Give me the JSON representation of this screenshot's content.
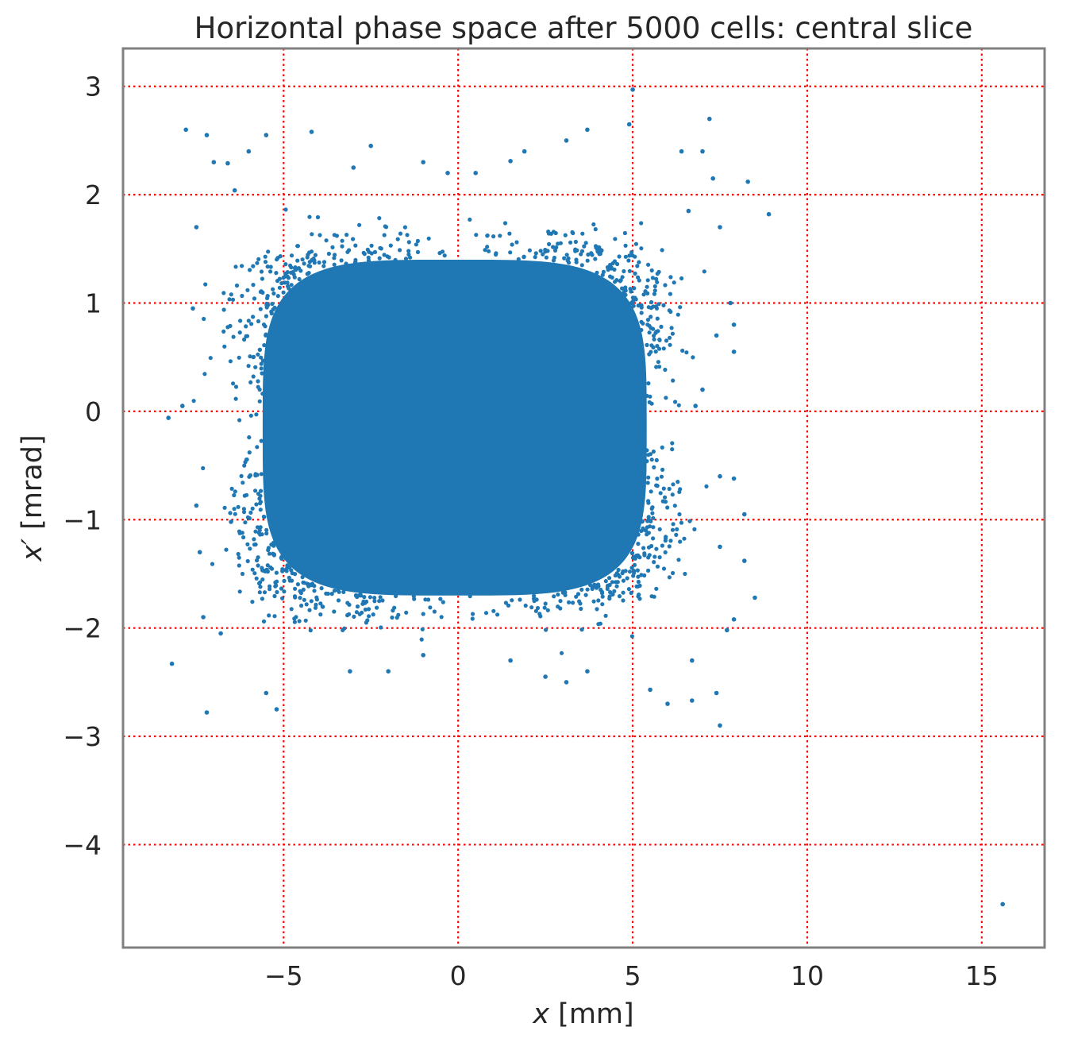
{
  "chart_data": {
    "type": "scatter",
    "title": "Horizontal phase space after 5000 cells: central slice",
    "xlabel": {
      "var": "x",
      "unit": "[mm]"
    },
    "ylabel": {
      "var": "x′",
      "unit": "[mrad]"
    },
    "xlim": [
      -9.6,
      16.8
    ],
    "ylim": [
      -4.95,
      3.35
    ],
    "x_ticks": [
      -5,
      0,
      5,
      10,
      15
    ],
    "x_tick_labels": [
      "−5",
      "0",
      "5",
      "10",
      "15"
    ],
    "y_ticks": [
      3,
      2,
      1,
      0,
      -1,
      -2,
      -3,
      -4
    ],
    "y_tick_labels": [
      "3",
      "2",
      "1",
      "0",
      "−1",
      "−2",
      "−3",
      "−4"
    ],
    "grid": true,
    "grid_style": "dotted",
    "colors": {
      "points": "#1f77b4",
      "grid": "#ff0000",
      "frame": "#808080"
    },
    "core": {
      "x_center": -0.1,
      "y_center": -0.15,
      "x_half_width": 5.5,
      "y_half_width": 1.55
    },
    "points": [
      [
        -8.3,
        -0.06
      ],
      [
        -7.8,
        2.6
      ],
      [
        -7.2,
        2.55
      ],
      [
        -6.0,
        2.4
      ],
      [
        -5.5,
        2.55
      ],
      [
        -4.2,
        2.58
      ],
      [
        -8.2,
        -2.33
      ],
      [
        -7.2,
        -2.78
      ],
      [
        -5.2,
        -2.75
      ],
      [
        -5.5,
        -2.6
      ],
      [
        -7.5,
        1.7
      ],
      [
        -7.6,
        0.95
      ],
      [
        -7.9,
        0.05
      ],
      [
        -7.5,
        -0.87
      ],
      [
        -7.4,
        -1.3
      ],
      [
        -7.3,
        -1.9
      ],
      [
        -6.8,
        -2.05
      ],
      [
        4.9,
        2.65
      ],
      [
        5.0,
        2.97
      ],
      [
        7.2,
        2.7
      ],
      [
        6.4,
        2.4
      ],
      [
        7.0,
        2.4
      ],
      [
        7.3,
        2.15
      ],
      [
        8.3,
        2.12
      ],
      [
        8.9,
        1.82
      ],
      [
        7.5,
        1.7
      ],
      [
        7.8,
        1.0
      ],
      [
        7.9,
        0.8
      ],
      [
        7.4,
        0.7
      ],
      [
        7.9,
        0.55
      ],
      [
        7.0,
        0.2
      ],
      [
        6.8,
        0.05
      ],
      [
        7.5,
        -0.6
      ],
      [
        7.9,
        -0.62
      ],
      [
        8.2,
        -0.95
      ],
      [
        7.5,
        -1.25
      ],
      [
        8.2,
        -1.38
      ],
      [
        8.5,
        -1.72
      ],
      [
        7.9,
        -1.92
      ],
      [
        7.7,
        -2.02
      ],
      [
        6.7,
        -2.3
      ],
      [
        7.4,
        -2.6
      ],
      [
        6.7,
        -2.67
      ],
      [
        6.0,
        -2.7
      ],
      [
        5.5,
        -2.57
      ],
      [
        7.5,
        -2.9
      ],
      [
        15.6,
        -4.55
      ],
      [
        2.5,
        -2.45
      ],
      [
        3.1,
        -2.5
      ],
      [
        -3.1,
        -2.4
      ],
      [
        -2.0,
        -2.4
      ],
      [
        -1.0,
        -2.25
      ],
      [
        1.5,
        -2.3
      ],
      [
        3.7,
        -2.4
      ],
      [
        -6.4,
        2.04
      ],
      [
        -7.0,
        2.3
      ],
      [
        -6.6,
        2.29
      ],
      [
        -1.0,
        2.3
      ],
      [
        1.5,
        2.31
      ],
      [
        3.1,
        2.5
      ],
      [
        3.7,
        2.6
      ],
      [
        -2.5,
        2.45
      ],
      [
        1.9,
        2.4
      ],
      [
        0.5,
        2.2
      ],
      [
        -0.3,
        2.2
      ],
      [
        -3.0,
        2.25
      ],
      [
        6.6,
        1.85
      ]
    ]
  }
}
